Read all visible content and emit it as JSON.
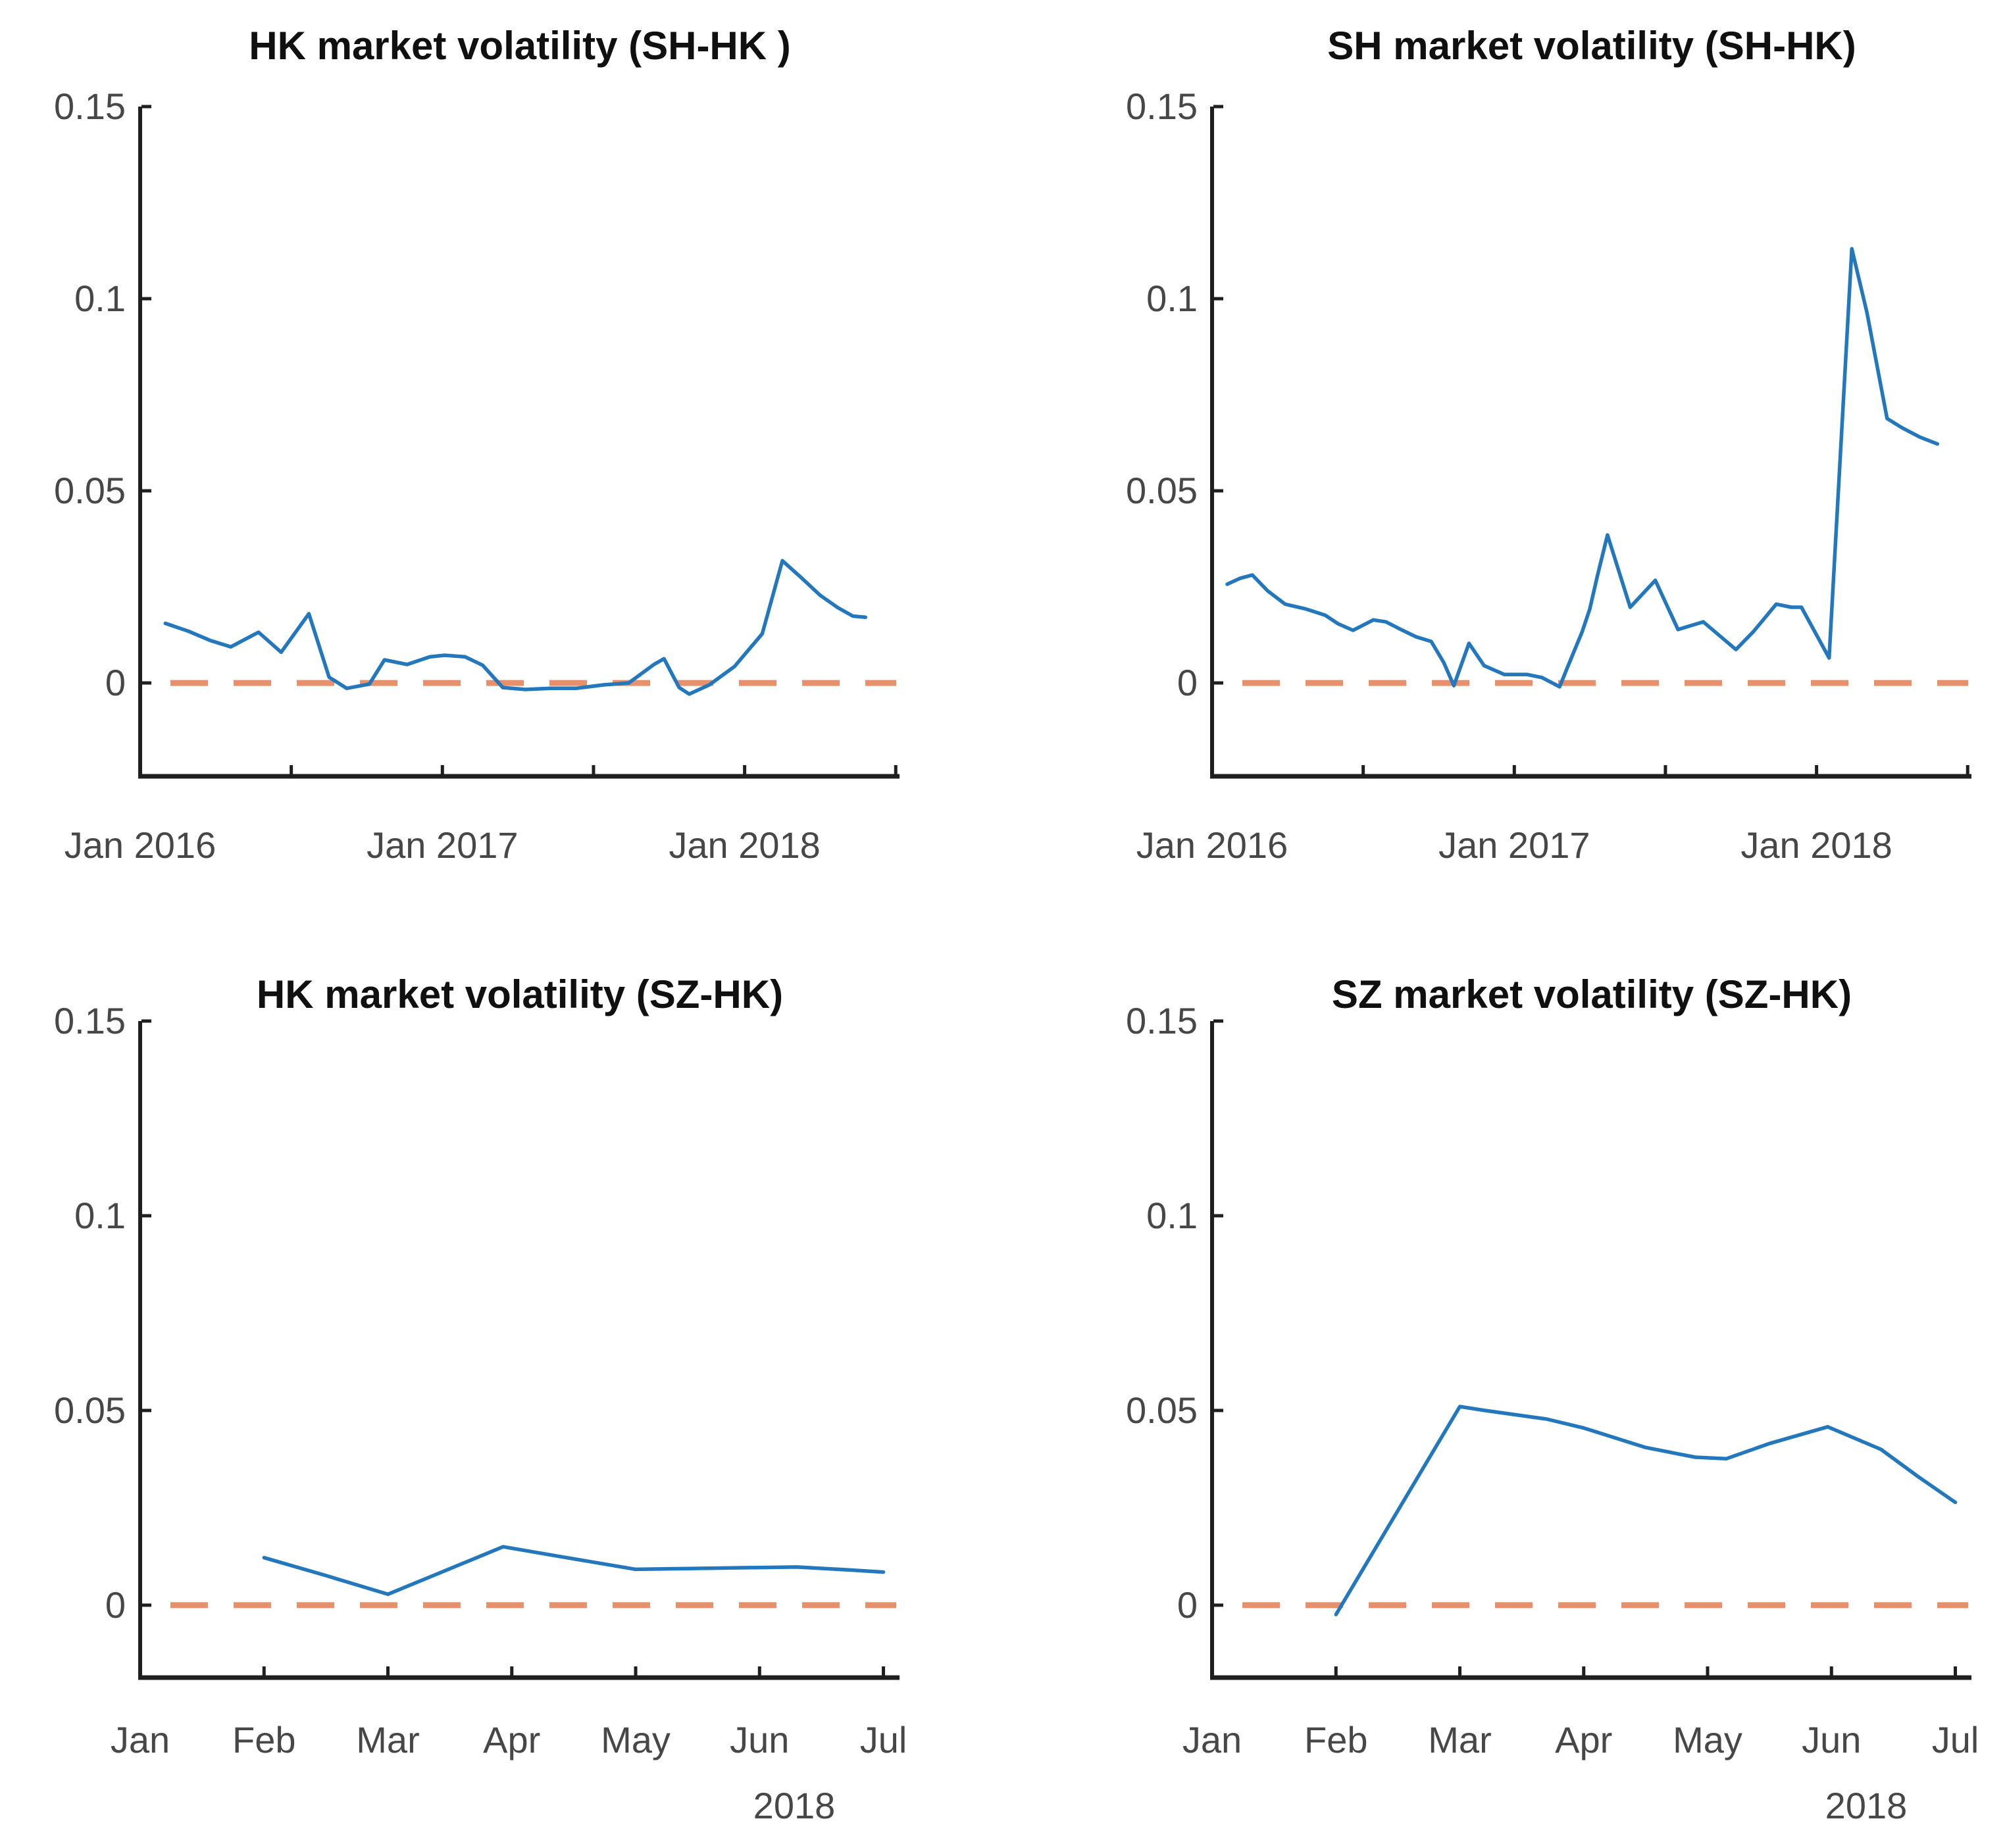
{
  "page": {
    "background": "#ffffff"
  },
  "styles": {
    "series_color": "#2377BC",
    "zero_line_color": "#E8906A",
    "axis_color": "#1f1f1f",
    "tick_label_color": "#474747",
    "title_color": "#101010"
  },
  "chart_data": [
    {
      "id": "hk-volatility-sh-hk",
      "type": "line",
      "title": "HK market volatility (SH-HK )",
      "grid": false,
      "legend": false,
      "x_axis": {
        "unit": "months since Jan 2016",
        "xlim": [
          0,
          30.15
        ],
        "ticks": [
          {
            "t": 0,
            "label": "Jan 2016"
          },
          {
            "t": 6,
            "label": ""
          },
          {
            "t": 12,
            "label": "Jan 2017"
          },
          {
            "t": 18,
            "label": ""
          },
          {
            "t": 24,
            "label": "Jan 2018"
          },
          {
            "t": 30,
            "label": ""
          }
        ]
      },
      "y_axis": {
        "ylim": [
          -0.0243,
          0.15
        ],
        "ticks": [
          {
            "v": 0,
            "label": "0"
          },
          {
            "v": 0.05,
            "label": "0.05"
          },
          {
            "v": 0.1,
            "label": "0.1"
          },
          {
            "v": 0.15,
            "label": "0.15"
          }
        ]
      },
      "zero_line": true,
      "series": [
        {
          "name": "HK market volatility",
          "x": [
            1.0,
            1.9,
            2.8,
            3.6,
            4.7,
            5.6,
            6.7,
            7.5,
            8.2,
            9.1,
            9.7,
            10.6,
            11.5,
            12.1,
            12.9,
            13.6,
            14.4,
            15.3,
            16.3,
            17.3,
            18.4,
            19.4,
            20.4,
            20.8,
            21.4,
            21.8,
            22.6,
            23.6,
            24.7,
            25.5,
            26.3,
            27.0,
            27.7,
            28.3,
            28.8
          ],
          "y": [
            0.0155,
            0.0135,
            0.011,
            0.0094,
            0.0132,
            0.008,
            0.018,
            0.0015,
            -0.0014,
            -0.0003,
            0.006,
            0.0048,
            0.0068,
            0.0072,
            0.0068,
            0.0046,
            -0.0012,
            -0.0017,
            -0.0014,
            -0.0014,
            -0.0005,
            0.0,
            0.0048,
            0.0063,
            -0.0012,
            -0.0029,
            -0.0005,
            0.0043,
            0.0128,
            0.0318,
            0.0271,
            0.0228,
            0.0196,
            0.0174,
            0.0171
          ]
        }
      ]
    },
    {
      "id": "sh-volatility-sh-hk",
      "type": "line",
      "title": "SH market volatility (SH-HK)",
      "grid": false,
      "legend": false,
      "x_axis": {
        "unit": "months since Jan 2016",
        "xlim": [
          0,
          30.15
        ],
        "ticks": [
          {
            "t": 0,
            "label": "Jan 2016"
          },
          {
            "t": 6,
            "label": ""
          },
          {
            "t": 12,
            "label": "Jan 2017"
          },
          {
            "t": 18,
            "label": ""
          },
          {
            "t": 24,
            "label": "Jan 2018"
          },
          {
            "t": 30,
            "label": ""
          }
        ]
      },
      "y_axis": {
        "ylim": [
          -0.0243,
          0.15
        ],
        "ticks": [
          {
            "v": 0,
            "label": "0"
          },
          {
            "v": 0.05,
            "label": "0.05"
          },
          {
            "v": 0.1,
            "label": "0.1"
          },
          {
            "v": 0.15,
            "label": "0.15"
          }
        ]
      },
      "zero_line": true,
      "series": [
        {
          "name": "SH market volatility",
          "x": [
            0.6,
            1.1,
            1.6,
            2.2,
            2.9,
            3.7,
            4.5,
            5.0,
            5.6,
            6.4,
            6.9,
            7.5,
            8.1,
            8.7,
            9.2,
            9.6,
            10.2,
            10.8,
            11.6,
            12.5,
            13.1,
            13.8,
            14.1,
            14.7,
            15.0,
            15.3,
            15.7,
            16.6,
            17.6,
            18.5,
            19.5,
            20.8,
            21.5,
            22.4,
            23.0,
            23.4,
            24.5,
            25.4,
            26.0,
            26.8,
            27.4,
            28.1,
            28.8
          ],
          "y": [
            0.0257,
            0.0272,
            0.0281,
            0.024,
            0.0205,
            0.0193,
            0.0176,
            0.0154,
            0.0137,
            0.0164,
            0.0159,
            0.0139,
            0.012,
            0.0108,
            0.0053,
            -0.0007,
            0.0103,
            0.0045,
            0.0022,
            0.0022,
            0.0014,
            -0.001,
            0.0039,
            0.0134,
            0.0193,
            0.0279,
            0.0385,
            0.0197,
            0.0267,
            0.0139,
            0.0159,
            0.0087,
            0.0134,
            0.0205,
            0.0197,
            0.0197,
            0.0065,
            0.113,
            0.0964,
            0.0688,
            0.0664,
            0.064,
            0.0622
          ]
        }
      ]
    },
    {
      "id": "hk-volatility-sz-hk",
      "type": "line",
      "title": "HK market volatility (SZ-HK)",
      "grid": false,
      "legend": false,
      "x_axis": {
        "unit": "months since Jan 2018",
        "xlim": [
          0,
          6.13
        ],
        "year_label": {
          "t": 5.28,
          "label": "2018"
        },
        "ticks": [
          {
            "t": 0,
            "label": "Jan"
          },
          {
            "t": 1,
            "label": "Feb"
          },
          {
            "t": 2,
            "label": "Mar"
          },
          {
            "t": 3,
            "label": "Apr"
          },
          {
            "t": 4,
            "label": "May"
          },
          {
            "t": 5,
            "label": "Jun"
          },
          {
            "t": 6,
            "label": "Jul"
          }
        ]
      },
      "y_axis": {
        "ylim": [
          -0.0186,
          0.15
        ],
        "ticks": [
          {
            "v": 0,
            "label": "0"
          },
          {
            "v": 0.05,
            "label": "0.05"
          },
          {
            "v": 0.1,
            "label": "0.1"
          },
          {
            "v": 0.15,
            "label": "0.15"
          }
        ]
      },
      "zero_line": true,
      "series": [
        {
          "name": "HK market volatility",
          "x": [
            1.0,
            1.5,
            2.0,
            2.93,
            3.35,
            4.0,
            4.6,
            5.3,
            5.75,
            6.0
          ],
          "y": [
            0.0122,
            0.0076,
            0.0028,
            0.015,
            0.0127,
            0.0092,
            0.0095,
            0.0098,
            0.009,
            0.0085
          ]
        }
      ]
    },
    {
      "id": "sz-volatility-sz-hk",
      "type": "line",
      "title": "SZ market volatility (SZ-HK)",
      "grid": false,
      "legend": false,
      "x_axis": {
        "unit": "months since Jan 2018",
        "xlim": [
          0,
          6.13
        ],
        "year_label": {
          "t": 5.28,
          "label": "2018"
        },
        "ticks": [
          {
            "t": 0,
            "label": "Jan"
          },
          {
            "t": 1,
            "label": "Feb"
          },
          {
            "t": 2,
            "label": "Mar"
          },
          {
            "t": 3,
            "label": "Apr"
          },
          {
            "t": 4,
            "label": "May"
          },
          {
            "t": 5,
            "label": "Jun"
          },
          {
            "t": 6,
            "label": "Jul"
          }
        ]
      },
      "y_axis": {
        "ylim": [
          -0.0186,
          0.15
        ],
        "ticks": [
          {
            "v": 0,
            "label": "0"
          },
          {
            "v": 0.05,
            "label": "0.05"
          },
          {
            "v": 0.1,
            "label": "0.1"
          },
          {
            "v": 0.15,
            "label": "0.15"
          }
        ]
      },
      "zero_line": true,
      "series": [
        {
          "name": "SZ market volatility",
          "x": [
            1.0,
            2.0,
            2.2,
            2.7,
            3.0,
            3.5,
            3.9,
            4.15,
            4.5,
            4.97,
            5.4,
            5.7,
            6.0
          ],
          "y": [
            -0.0024,
            0.051,
            0.05,
            0.0478,
            0.0455,
            0.0405,
            0.038,
            0.0376,
            0.0415,
            0.0458,
            0.04,
            0.033,
            0.0264
          ]
        }
      ]
    }
  ]
}
